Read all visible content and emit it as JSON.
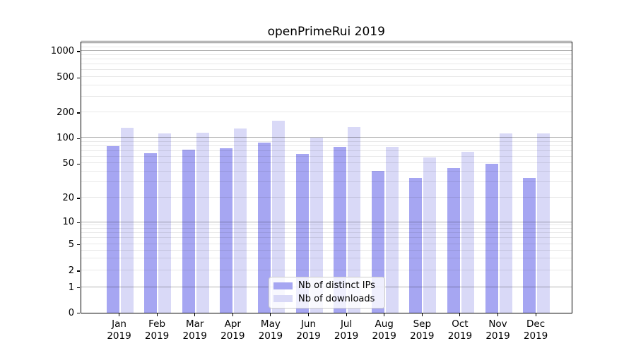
{
  "title": "openPrimeRui 2019",
  "chart_data": {
    "type": "bar",
    "categories": [
      "Jan",
      "Feb",
      "Mar",
      "Apr",
      "May",
      "Jun",
      "Jul",
      "Aug",
      "Sep",
      "Oct",
      "Nov",
      "Dec"
    ],
    "category_year": "2019",
    "series": [
      {
        "name": "Nb of distinct IPs",
        "color": "#a6a6f2",
        "values": [
          80,
          66,
          72,
          75,
          88,
          65,
          78,
          41,
          34,
          44,
          49,
          34
        ]
      },
      {
        "name": "Nb of downloads",
        "color": "#d9d9f7",
        "values": [
          131,
          112,
          114,
          128,
          159,
          101,
          133,
          78,
          59,
          68,
          113,
          113
        ]
      }
    ],
    "yscale": "symlog",
    "ylim": [
      0,
      1320
    ],
    "yticks": [
      0,
      1,
      2,
      5,
      10,
      20,
      50,
      100,
      200,
      500,
      1000
    ],
    "grid": true,
    "legend_position": "lower center"
  }
}
